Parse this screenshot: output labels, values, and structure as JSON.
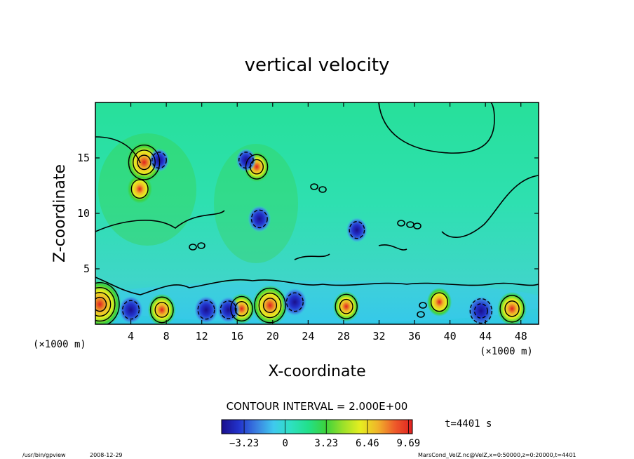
{
  "chart_data": {
    "type": "heatmap",
    "title": "vertical velocity",
    "xlabel": "X-coordinate",
    "ylabel": "Z-coordinate",
    "x_unit_left": "(×1000 m)",
    "x_unit_right": "(×1000 m)",
    "xlim": [
      0,
      50
    ],
    "ylim": [
      0,
      20
    ],
    "xticks": [
      4,
      8,
      12,
      16,
      20,
      24,
      28,
      32,
      36,
      40,
      44,
      48
    ],
    "yticks": [
      5,
      10,
      15
    ],
    "contour_interval_label": "CONTOUR INTERVAL = 2.000E+00",
    "time_label": "t=4401 s",
    "colorbar": {
      "range": [
        -5,
        10
      ],
      "tick_values": [
        -3.23,
        0,
        3.23,
        6.46,
        9.69
      ],
      "tick_labels": [
        "−3.23",
        "0",
        "3.23",
        "6.46",
        "9.69"
      ],
      "colors": [
        "#1a0f8c",
        "#2233cc",
        "#3a7ee0",
        "#3fc9ee",
        "#2ee0c0",
        "#22e08a",
        "#3cd23c",
        "#9be02a",
        "#e6ee20",
        "#f0b42a",
        "#ee5a2a",
        "#e02020"
      ]
    },
    "features": [
      {
        "kind": "up",
        "x": 0.5,
        "z": 1.8,
        "value": 9.5
      },
      {
        "kind": "up",
        "x": 7.5,
        "z": 1.3,
        "value": 4.5
      },
      {
        "kind": "up",
        "x": 16.5,
        "z": 1.4,
        "value": 4.0
      },
      {
        "kind": "up",
        "x": 19.7,
        "z": 1.7,
        "value": 7.0
      },
      {
        "kind": "up",
        "x": 28.3,
        "z": 1.6,
        "value": 4.0
      },
      {
        "kind": "up",
        "x": 38.8,
        "z": 2.0,
        "value": 3.5
      },
      {
        "kind": "up",
        "x": 47.0,
        "z": 1.4,
        "value": 5.0
      },
      {
        "kind": "up",
        "x": 5.5,
        "z": 14.6,
        "value": 7.0
      },
      {
        "kind": "up",
        "x": 18.2,
        "z": 14.2,
        "value": 4.0
      },
      {
        "kind": "up",
        "x": 5.0,
        "z": 12.2,
        "value": 3.5
      },
      {
        "kind": "down",
        "x": 4.0,
        "z": 1.3,
        "value": -3.5
      },
      {
        "kind": "down",
        "x": 12.5,
        "z": 1.3,
        "value": -3.5
      },
      {
        "kind": "down",
        "x": 15.0,
        "z": 1.3,
        "value": -3.0
      },
      {
        "kind": "down",
        "x": 22.5,
        "z": 2.0,
        "value": -3.5
      },
      {
        "kind": "down",
        "x": 43.5,
        "z": 1.2,
        "value": -4.0
      },
      {
        "kind": "down",
        "x": 18.5,
        "z": 9.5,
        "value": -3.0
      },
      {
        "kind": "down",
        "x": 29.5,
        "z": 8.5,
        "value": -2.5
      },
      {
        "kind": "down",
        "x": 7.2,
        "z": 14.8,
        "value": -2.0
      },
      {
        "kind": "down",
        "x": 17.0,
        "z": 14.8,
        "value": -2.0
      }
    ]
  },
  "footer": {
    "program": "/usr/bin/gpview",
    "date": "2008-12-29",
    "source": "MarsCond_VelZ.nc@VelZ,x=0:50000,z=0:20000,t=4401"
  }
}
